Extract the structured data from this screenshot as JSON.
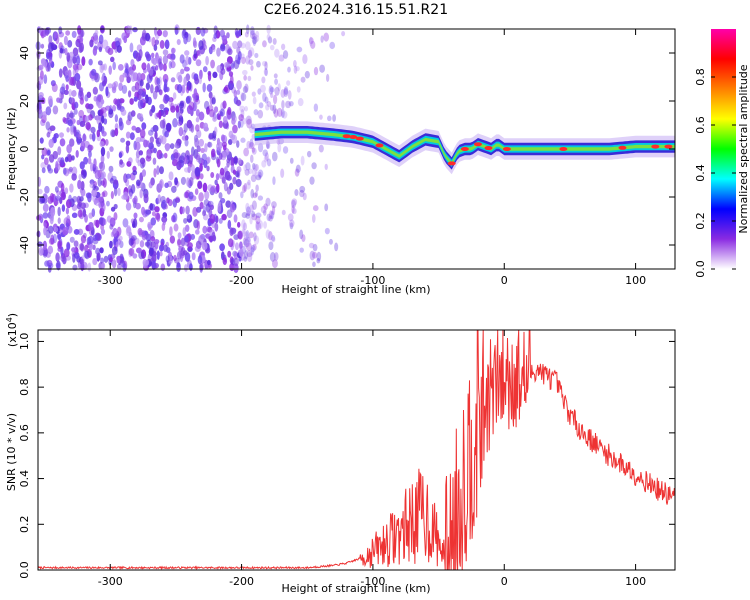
{
  "title": "C2E6.2024.316.15.51.R21",
  "chart_data": [
    {
      "type": "heatmap",
      "xlabel": "Height of straight line (km)",
      "ylabel": "Frequency (Hz)",
      "xlim": [
        -355,
        130
      ],
      "ylim": [
        -50,
        50
      ],
      "xticks": [
        -300,
        -200,
        -100,
        0,
        100
      ],
      "xtick_labels": [
        "-300",
        "-200",
        "-100",
        "0",
        "100"
      ],
      "yticks": [
        -40,
        -20,
        0,
        20,
        40
      ],
      "ytick_labels": [
        "-40",
        "-20",
        "0",
        "20",
        "40"
      ],
      "colorbar": {
        "label": "Normalized spectral amplitude",
        "range": [
          0,
          1
        ],
        "ticks": [
          0.0,
          0.2,
          0.4,
          0.6,
          0.8
        ],
        "tick_labels": [
          "0.0",
          "0.2",
          "0.4",
          "0.6",
          "0.8"
        ],
        "colormap": [
          "#ffffff",
          "#8a2be2",
          "#0000ff",
          "#00ffff",
          "#00ff00",
          "#ffff00",
          "#ff7f00",
          "#ff0000",
          "#ff00aa"
        ]
      },
      "ridge": {
        "x": [
          -190,
          -170,
          -150,
          -130,
          -115,
          -100,
          -90,
          -80,
          -70,
          -60,
          -50,
          -45,
          -40,
          -35,
          -30,
          -25,
          -20,
          -15,
          -10,
          -5,
          0,
          10,
          20,
          40,
          60,
          80,
          100,
          110,
          130
        ],
        "y": [
          6,
          7,
          7,
          6,
          5,
          3,
          0,
          -3,
          1,
          4,
          3,
          -3,
          -6,
          -1,
          0,
          0,
          2,
          1,
          0,
          2,
          0,
          0,
          0,
          0,
          0,
          0,
          1,
          1,
          1
        ]
      }
    },
    {
      "type": "line",
      "xlabel": "Height of straight line (km)",
      "ylabel": "SNR (10 * v/v)",
      "y_multiplier": "(x10",
      "y_multiplier_exp": "4",
      "y_multiplier_close": ")",
      "xlim": [
        -355,
        130
      ],
      "ylim": [
        0,
        1.05
      ],
      "xticks": [
        -300,
        -200,
        -100,
        0,
        100
      ],
      "xtick_labels": [
        "-300",
        "-200",
        "-100",
        "0",
        "100"
      ],
      "yticks": [
        0.0,
        0.2,
        0.4,
        0.6,
        0.8,
        1.0
      ],
      "ytick_labels": [
        "0.0",
        "0.2",
        "0.4",
        "0.6",
        "0.8",
        "1.0"
      ],
      "series": [
        {
          "color": "#ee3333",
          "x": [
            -355,
            -300,
            -250,
            -200,
            -150,
            -130,
            -120,
            -110,
            -100,
            -90,
            -80,
            -70,
            -60,
            -50,
            -45,
            -40,
            -35,
            -30,
            -25,
            -20,
            -15,
            -10,
            -5,
            0,
            5,
            10,
            15,
            20,
            25,
            30,
            35,
            40,
            45,
            50,
            60,
            70,
            80,
            90,
            100,
            110,
            120,
            130
          ],
          "y": [
            0.01,
            0.01,
            0.01,
            0.01,
            0.01,
            0.02,
            0.03,
            0.05,
            0.08,
            0.12,
            0.16,
            0.22,
            0.25,
            0.12,
            0.06,
            0.12,
            0.3,
            0.42,
            0.55,
            0.7,
            0.72,
            0.78,
            0.82,
            0.84,
            0.85,
            0.84,
            0.83,
            0.86,
            0.88,
            0.86,
            0.84,
            0.82,
            0.74,
            0.68,
            0.6,
            0.55,
            0.5,
            0.46,
            0.42,
            0.38,
            0.34,
            0.32
          ]
        }
      ]
    }
  ]
}
